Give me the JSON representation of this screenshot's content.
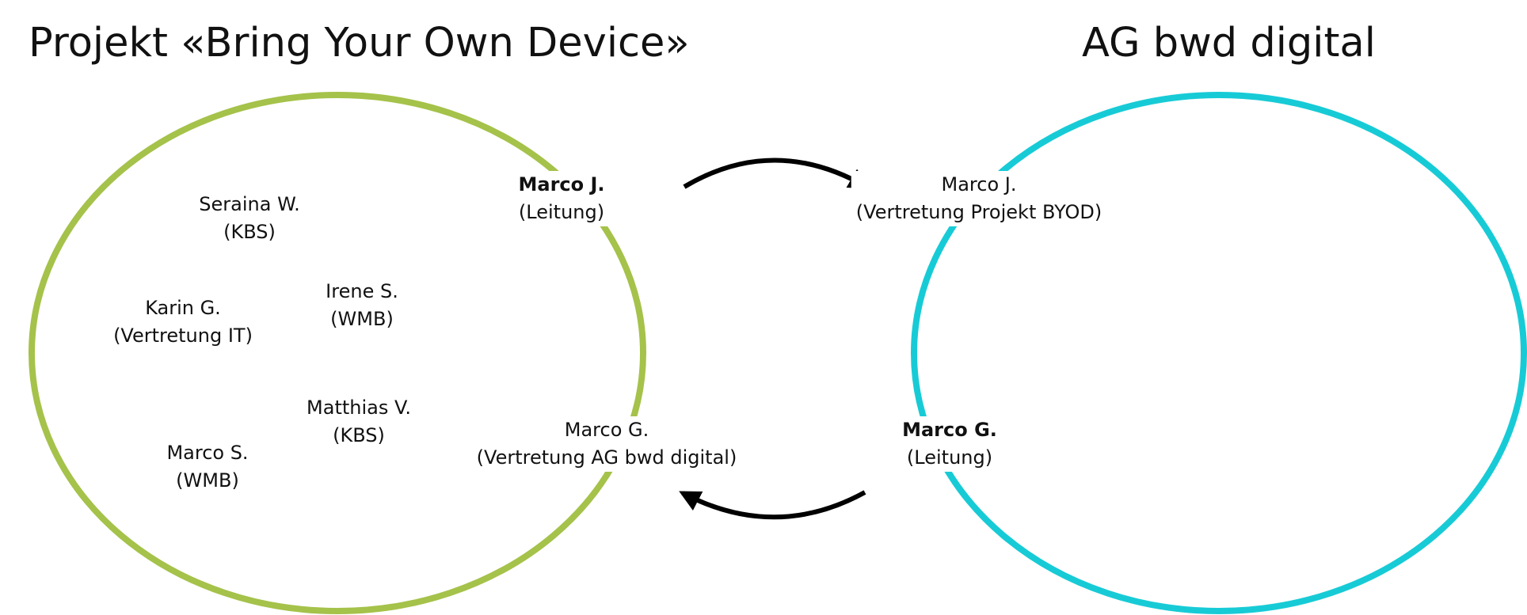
{
  "groups": {
    "left": {
      "title": "Projekt «Bring Your Own Device»",
      "color": "#a5c24a",
      "members": [
        {
          "name": "Seraina W.",
          "role": "(KBS)"
        },
        {
          "name": "Irene S.",
          "role": "(WMB)"
        },
        {
          "name": "Karin G.",
          "role": "(Vertretung IT)"
        },
        {
          "name": "Matthias V.",
          "role": "(KBS)"
        },
        {
          "name": "Marco S.",
          "role": "(WMB)"
        }
      ],
      "lead": {
        "name": "Marco J.",
        "role": "(Leitung)"
      },
      "representative": {
        "name": "Marco G.",
        "role": "(Vertretung AG bwd digital)"
      }
    },
    "right": {
      "title": "AG bwd digital",
      "color": "#17cbd6",
      "representative": {
        "name": "Marco J.",
        "role": "(Vertretung Projekt BYOD)"
      },
      "lead": {
        "name": "Marco G.",
        "role": "(Leitung)"
      }
    }
  },
  "arrows": {
    "color": "#000000",
    "items": [
      {
        "from": "Marco J. (Leitung)",
        "to": "Marco J. (Vertretung Projekt BYOD)"
      },
      {
        "from": "Marco G. (Leitung)",
        "to": "Marco G. (Vertretung AG bwd digital)"
      }
    ]
  }
}
